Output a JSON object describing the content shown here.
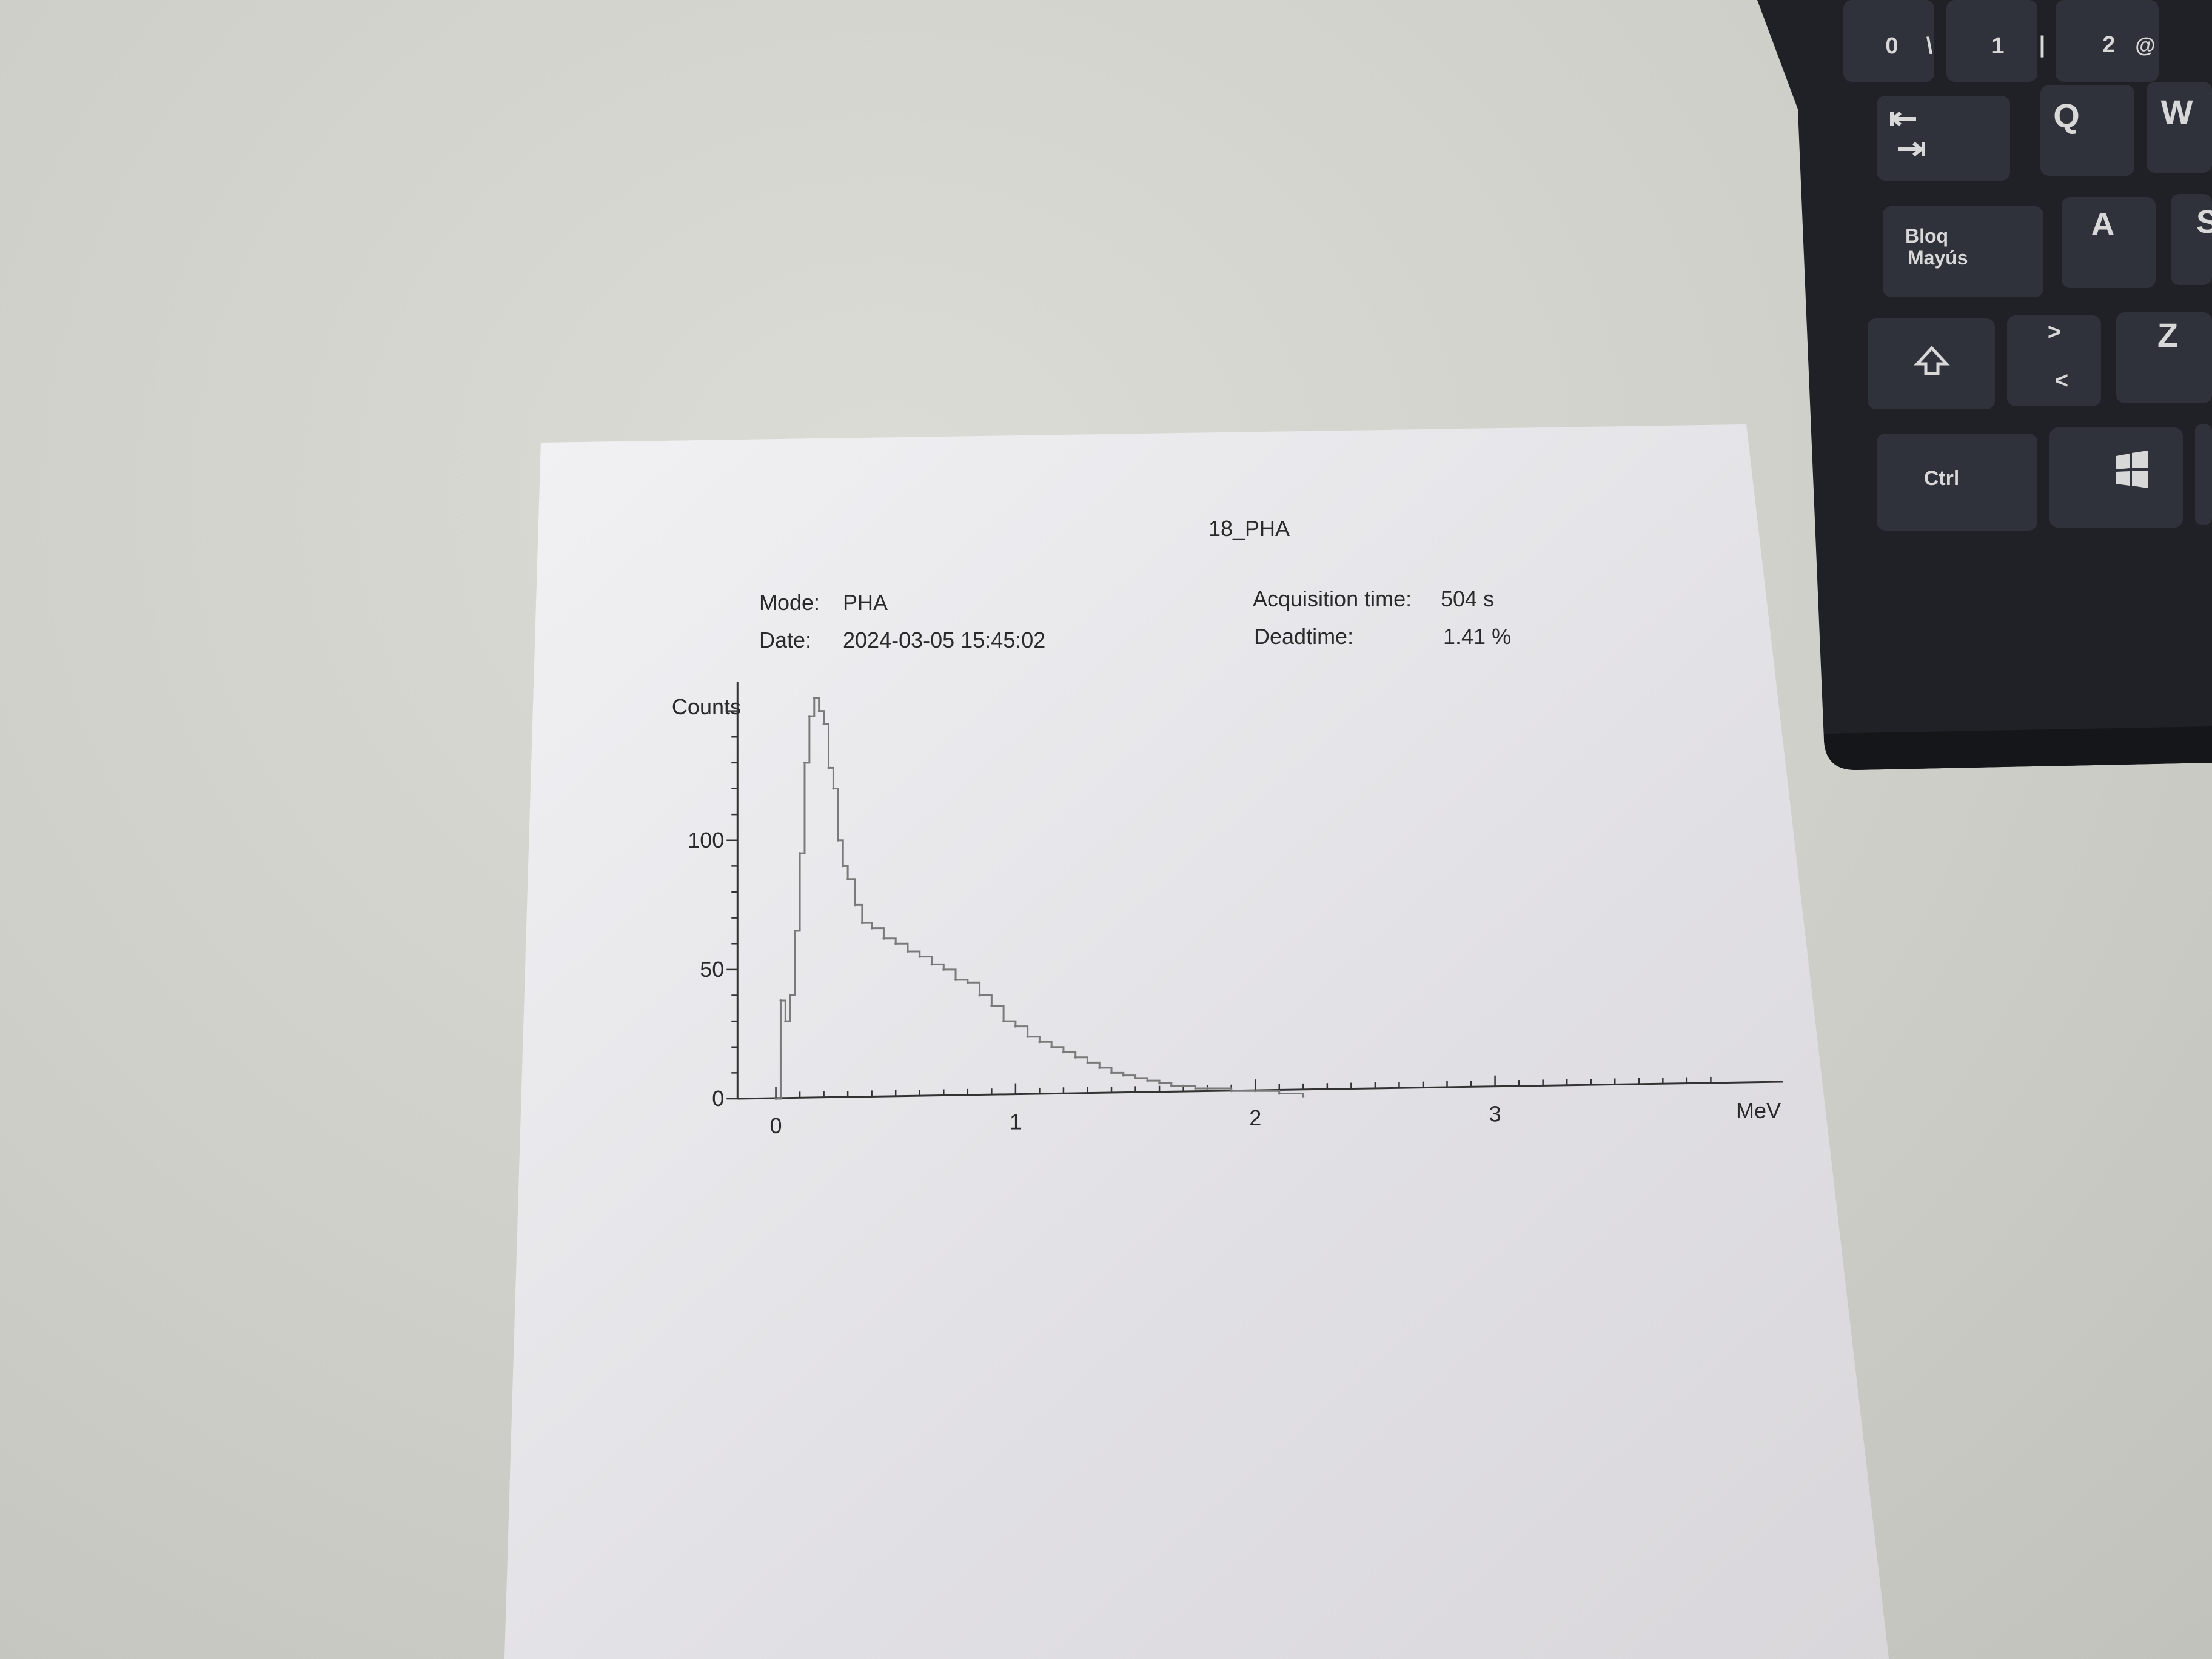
{
  "printout": {
    "title": "18_PHA",
    "mode_label": "Mode:",
    "mode_value": "PHA",
    "date_label": "Date:",
    "date_value": "2024-03-05 15:45:02",
    "acq_label": "Acquisition time:",
    "acq_value": "504 s",
    "dead_label": "Deadtime:",
    "dead_value": "1.41 %"
  },
  "keyboard": {
    "keys": {
      "k0": "0",
      "backslash": "\\",
      "k1": "1",
      "pipe": "|",
      "k2": "2",
      "at": "@",
      "q": "Q",
      "w": "W",
      "caps_1": "Bloq",
      "caps_2": "Mayús",
      "a": "A",
      "s": "S",
      "gt": ">",
      "lt": "<",
      "z": "Z",
      "ctrl": "Ctrl"
    },
    "colors": {
      "body": "#23252b",
      "key": "#2f323a",
      "legend": "#d8d8d8"
    }
  },
  "chart_data": {
    "type": "line",
    "title": "",
    "xlabel": "MeV",
    "ylabel": "Counts",
    "xlim": [
      -0.1,
      4.2
    ],
    "ylim": [
      0,
      160
    ],
    "x_ticks": [
      "0",
      "1",
      "2",
      "3"
    ],
    "y_ticks": [
      "0",
      "50",
      "100"
    ],
    "x_tick_values": [
      0,
      1,
      2,
      3
    ],
    "y_tick_values": [
      0,
      50,
      100
    ],
    "series": [
      {
        "x": [
          0.0,
          0.02,
          0.04,
          0.06,
          0.08,
          0.1,
          0.12,
          0.14,
          0.16,
          0.18,
          0.2,
          0.22,
          0.24,
          0.26,
          0.28,
          0.3,
          0.33,
          0.36,
          0.4,
          0.45,
          0.5,
          0.55,
          0.6,
          0.65,
          0.7,
          0.75,
          0.8,
          0.85,
          0.9,
          0.95,
          1.0,
          1.05,
          1.1,
          1.15,
          1.2,
          1.25,
          1.3,
          1.35,
          1.4,
          1.45,
          1.5,
          1.55,
          1.6,
          1.65,
          1.7,
          1.75,
          1.8,
          1.9,
          2.0,
          2.1,
          2.2
        ],
        "y": [
          0,
          38,
          30,
          40,
          65,
          95,
          130,
          148,
          155,
          150,
          145,
          128,
          120,
          100,
          90,
          85,
          75,
          68,
          66,
          62,
          60,
          57,
          55,
          52,
          50,
          46,
          45,
          40,
          36,
          30,
          28,
          24,
          22,
          20,
          18,
          16,
          14,
          12,
          10,
          9,
          8,
          7,
          6,
          5,
          5,
          4,
          4,
          3,
          3,
          2,
          1
        ]
      }
    ]
  }
}
